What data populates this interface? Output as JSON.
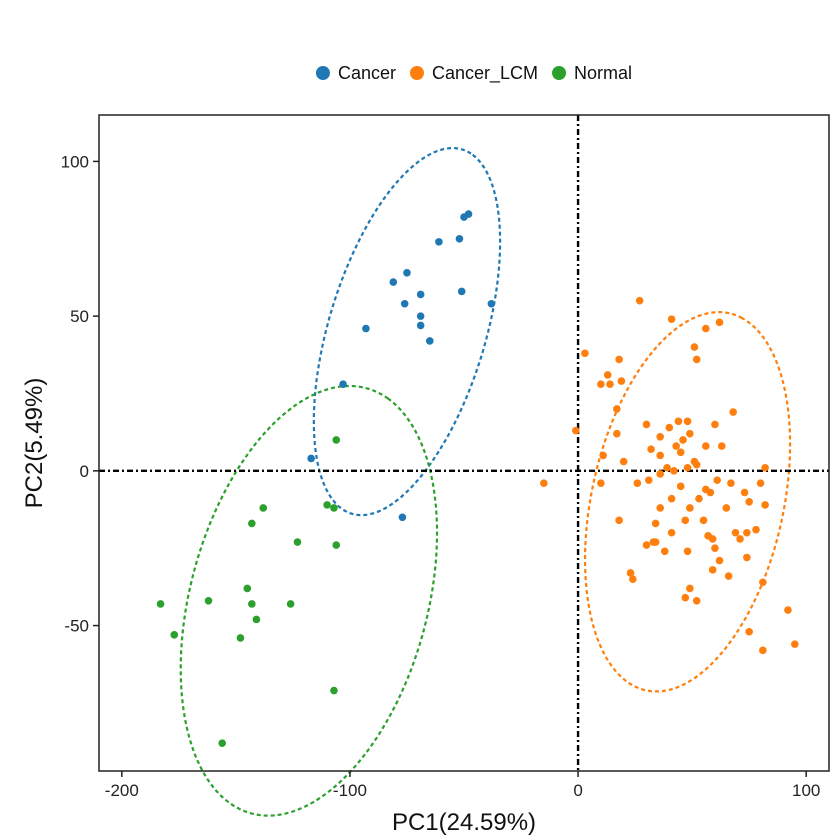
{
  "chart_data": {
    "type": "scatter",
    "xlabel": "PC1(24.59%)",
    "ylabel": "PC2(5.49%)",
    "xlim": [
      -210,
      110
    ],
    "ylim": [
      -97,
      115
    ],
    "xticks": [
      -200,
      -100,
      0,
      100
    ],
    "yticks": [
      -50,
      0,
      50,
      100
    ],
    "xtick_labels": [
      "-200",
      "-100",
      "0",
      "100"
    ],
    "ytick_labels": [
      "-50",
      "0",
      "50",
      "100"
    ],
    "reference_lines": {
      "x": 0,
      "y": 0,
      "style": "dot-dash"
    },
    "legend": {
      "position": "top"
    },
    "series": [
      {
        "name": "Cancer",
        "color": "#1f77b4",
        "ellipse": {
          "center": [
            -75,
            45
          ],
          "semi_major_axis": 64,
          "semi_minor_axis": 33,
          "angle_deg": 64
        },
        "points": [
          [
            -48,
            83
          ],
          [
            -50,
            82
          ],
          [
            -61,
            74
          ],
          [
            -52,
            75
          ],
          [
            -75,
            64
          ],
          [
            -81,
            61
          ],
          [
            -69,
            57
          ],
          [
            -76,
            54
          ],
          [
            -51,
            58
          ],
          [
            -38,
            54
          ],
          [
            -93,
            46
          ],
          [
            -69,
            50
          ],
          [
            -69,
            47
          ],
          [
            -65,
            42
          ],
          [
            -103,
            28
          ],
          [
            -117,
            4
          ],
          [
            -77,
            -15
          ]
        ]
      },
      {
        "name": "Cancer_LCM",
        "color": "#ff7f0e",
        "ellipse": {
          "center": [
            48,
            -10
          ],
          "semi_major_axis": 64,
          "semi_minor_axis": 41,
          "angle_deg": 68
        },
        "points": [
          [
            27,
            55
          ],
          [
            41,
            49
          ],
          [
            56,
            46
          ],
          [
            62,
            48
          ],
          [
            51,
            40
          ],
          [
            3,
            38
          ],
          [
            52,
            36
          ],
          [
            18,
            36
          ],
          [
            13,
            31
          ],
          [
            10,
            28
          ],
          [
            14,
            28
          ],
          [
            19,
            29
          ],
          [
            17,
            20
          ],
          [
            68,
            19
          ],
          [
            44,
            16
          ],
          [
            48,
            16
          ],
          [
            49,
            12
          ],
          [
            17,
            12
          ],
          [
            30,
            15
          ],
          [
            40,
            14
          ],
          [
            -1,
            13
          ],
          [
            60,
            15
          ],
          [
            36,
            11
          ],
          [
            46,
            10
          ],
          [
            63,
            8
          ],
          [
            43,
            8
          ],
          [
            32,
            7
          ],
          [
            36,
            5
          ],
          [
            51,
            3
          ],
          [
            52,
            2
          ],
          [
            56,
            8
          ],
          [
            45,
            6
          ],
          [
            11,
            5
          ],
          [
            20,
            3
          ],
          [
            48,
            1
          ],
          [
            42,
            0
          ],
          [
            39,
            1
          ],
          [
            82,
            1
          ],
          [
            36,
            -1
          ],
          [
            31,
            -3
          ],
          [
            61,
            -3
          ],
          [
            80,
            -4
          ],
          [
            26,
            -4
          ],
          [
            45,
            -5
          ],
          [
            10,
            -4
          ],
          [
            67,
            -4
          ],
          [
            58,
            -7
          ],
          [
            56,
            -6
          ],
          [
            73,
            -7
          ],
          [
            41,
            -9
          ],
          [
            53,
            -9
          ],
          [
            65,
            -12
          ],
          [
            75,
            -10
          ],
          [
            49,
            -12
          ],
          [
            36,
            -12
          ],
          [
            82,
            -11
          ],
          [
            18,
            -16
          ],
          [
            47,
            -16
          ],
          [
            34,
            -17
          ],
          [
            55,
            -16
          ],
          [
            41,
            -20
          ],
          [
            69,
            -20
          ],
          [
            71,
            -22
          ],
          [
            57,
            -21
          ],
          [
            74,
            -20
          ],
          [
            78,
            -19
          ],
          [
            59,
            -22
          ],
          [
            60,
            -25
          ],
          [
            30,
            -24
          ],
          [
            33,
            -23
          ],
          [
            34,
            -23
          ],
          [
            38,
            -26
          ],
          [
            48,
            -26
          ],
          [
            62,
            -29
          ],
          [
            74,
            -28
          ],
          [
            23,
            -33
          ],
          [
            59,
            -32
          ],
          [
            66,
            -34
          ],
          [
            24,
            -35
          ],
          [
            81,
            -36
          ],
          [
            49,
            -38
          ],
          [
            47,
            -41
          ],
          [
            52,
            -42
          ],
          [
            92,
            -45
          ],
          [
            75,
            -52
          ],
          [
            95,
            -56
          ],
          [
            81,
            -58
          ],
          [
            -15,
            -4
          ]
        ]
      },
      {
        "name": "Normal",
        "color": "#2ca02c",
        "ellipse": {
          "center": [
            -118,
            -42
          ],
          "semi_major_axis": 74,
          "semi_minor_axis": 50,
          "angle_deg": 62
        },
        "points": [
          [
            -106,
            10
          ],
          [
            -110,
            -11
          ],
          [
            -107,
            -12
          ],
          [
            -138,
            -12
          ],
          [
            -143,
            -17
          ],
          [
            -123,
            -23
          ],
          [
            -106,
            -24
          ],
          [
            -145,
            -38
          ],
          [
            -183,
            -43
          ],
          [
            -162,
            -42
          ],
          [
            -143,
            -43
          ],
          [
            -126,
            -43
          ],
          [
            -141,
            -48
          ],
          [
            -177,
            -53
          ],
          [
            -148,
            -54
          ],
          [
            -107,
            -71
          ],
          [
            -156,
            -88
          ]
        ]
      }
    ]
  }
}
